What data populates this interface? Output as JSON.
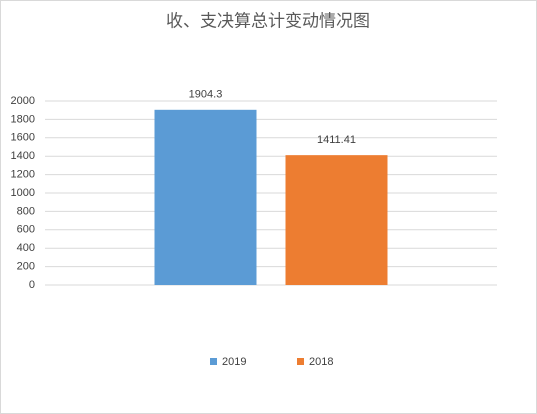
{
  "chart_data": {
    "type": "bar",
    "title": "收、支决算总计变动情况图",
    "categories": [
      null
    ],
    "series": [
      {
        "name": "2019",
        "color": "#5b9bd5",
        "values": [
          1904.3
        ]
      },
      {
        "name": "2018",
        "color": "#ed7d31",
        "values": [
          1411.41
        ]
      }
    ],
    "ylim": [
      0,
      2000
    ],
    "yticks": [
      0,
      200,
      400,
      600,
      800,
      1000,
      1200,
      1400,
      1600,
      1800,
      2000
    ],
    "grid": true,
    "legend": "bottom"
  }
}
